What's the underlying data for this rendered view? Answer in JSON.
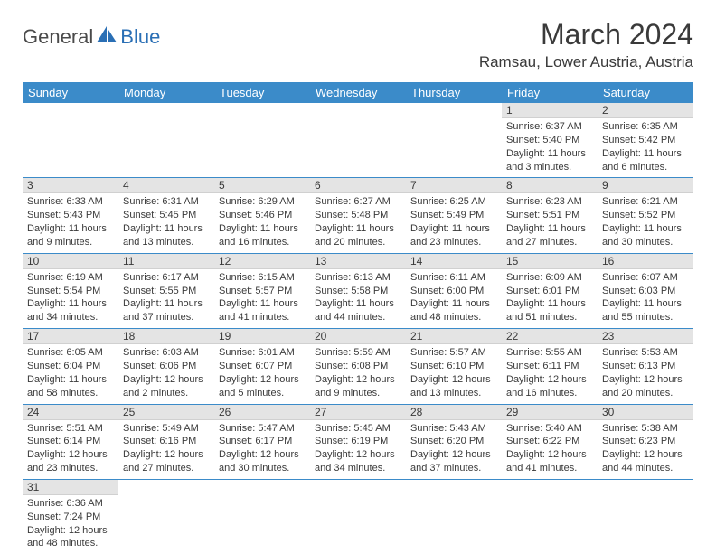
{
  "brand": {
    "part1": "General",
    "part2": "Blue"
  },
  "title": "March 2024",
  "location": "Ramsau, Lower Austria, Austria",
  "colors": {
    "header_bg": "#3b8bc9",
    "header_text": "#ffffff",
    "daynum_bg": "#e4e4e4",
    "text": "#3a3a3a",
    "row_border": "#3b8bc9",
    "logo_gray": "#4a4a4a",
    "logo_blue": "#2a6fb5"
  },
  "weekdays": [
    "Sunday",
    "Monday",
    "Tuesday",
    "Wednesday",
    "Thursday",
    "Friday",
    "Saturday"
  ],
  "weeks": [
    [
      null,
      null,
      null,
      null,
      null,
      {
        "num": "1",
        "sunrise": "Sunrise: 6:37 AM",
        "sunset": "Sunset: 5:40 PM",
        "daylight": "Daylight: 11 hours and 3 minutes."
      },
      {
        "num": "2",
        "sunrise": "Sunrise: 6:35 AM",
        "sunset": "Sunset: 5:42 PM",
        "daylight": "Daylight: 11 hours and 6 minutes."
      }
    ],
    [
      {
        "num": "3",
        "sunrise": "Sunrise: 6:33 AM",
        "sunset": "Sunset: 5:43 PM",
        "daylight": "Daylight: 11 hours and 9 minutes."
      },
      {
        "num": "4",
        "sunrise": "Sunrise: 6:31 AM",
        "sunset": "Sunset: 5:45 PM",
        "daylight": "Daylight: 11 hours and 13 minutes."
      },
      {
        "num": "5",
        "sunrise": "Sunrise: 6:29 AM",
        "sunset": "Sunset: 5:46 PM",
        "daylight": "Daylight: 11 hours and 16 minutes."
      },
      {
        "num": "6",
        "sunrise": "Sunrise: 6:27 AM",
        "sunset": "Sunset: 5:48 PM",
        "daylight": "Daylight: 11 hours and 20 minutes."
      },
      {
        "num": "7",
        "sunrise": "Sunrise: 6:25 AM",
        "sunset": "Sunset: 5:49 PM",
        "daylight": "Daylight: 11 hours and 23 minutes."
      },
      {
        "num": "8",
        "sunrise": "Sunrise: 6:23 AM",
        "sunset": "Sunset: 5:51 PM",
        "daylight": "Daylight: 11 hours and 27 minutes."
      },
      {
        "num": "9",
        "sunrise": "Sunrise: 6:21 AM",
        "sunset": "Sunset: 5:52 PM",
        "daylight": "Daylight: 11 hours and 30 minutes."
      }
    ],
    [
      {
        "num": "10",
        "sunrise": "Sunrise: 6:19 AM",
        "sunset": "Sunset: 5:54 PM",
        "daylight": "Daylight: 11 hours and 34 minutes."
      },
      {
        "num": "11",
        "sunrise": "Sunrise: 6:17 AM",
        "sunset": "Sunset: 5:55 PM",
        "daylight": "Daylight: 11 hours and 37 minutes."
      },
      {
        "num": "12",
        "sunrise": "Sunrise: 6:15 AM",
        "sunset": "Sunset: 5:57 PM",
        "daylight": "Daylight: 11 hours and 41 minutes."
      },
      {
        "num": "13",
        "sunrise": "Sunrise: 6:13 AM",
        "sunset": "Sunset: 5:58 PM",
        "daylight": "Daylight: 11 hours and 44 minutes."
      },
      {
        "num": "14",
        "sunrise": "Sunrise: 6:11 AM",
        "sunset": "Sunset: 6:00 PM",
        "daylight": "Daylight: 11 hours and 48 minutes."
      },
      {
        "num": "15",
        "sunrise": "Sunrise: 6:09 AM",
        "sunset": "Sunset: 6:01 PM",
        "daylight": "Daylight: 11 hours and 51 minutes."
      },
      {
        "num": "16",
        "sunrise": "Sunrise: 6:07 AM",
        "sunset": "Sunset: 6:03 PM",
        "daylight": "Daylight: 11 hours and 55 minutes."
      }
    ],
    [
      {
        "num": "17",
        "sunrise": "Sunrise: 6:05 AM",
        "sunset": "Sunset: 6:04 PM",
        "daylight": "Daylight: 11 hours and 58 minutes."
      },
      {
        "num": "18",
        "sunrise": "Sunrise: 6:03 AM",
        "sunset": "Sunset: 6:06 PM",
        "daylight": "Daylight: 12 hours and 2 minutes."
      },
      {
        "num": "19",
        "sunrise": "Sunrise: 6:01 AM",
        "sunset": "Sunset: 6:07 PM",
        "daylight": "Daylight: 12 hours and 5 minutes."
      },
      {
        "num": "20",
        "sunrise": "Sunrise: 5:59 AM",
        "sunset": "Sunset: 6:08 PM",
        "daylight": "Daylight: 12 hours and 9 minutes."
      },
      {
        "num": "21",
        "sunrise": "Sunrise: 5:57 AM",
        "sunset": "Sunset: 6:10 PM",
        "daylight": "Daylight: 12 hours and 13 minutes."
      },
      {
        "num": "22",
        "sunrise": "Sunrise: 5:55 AM",
        "sunset": "Sunset: 6:11 PM",
        "daylight": "Daylight: 12 hours and 16 minutes."
      },
      {
        "num": "23",
        "sunrise": "Sunrise: 5:53 AM",
        "sunset": "Sunset: 6:13 PM",
        "daylight": "Daylight: 12 hours and 20 minutes."
      }
    ],
    [
      {
        "num": "24",
        "sunrise": "Sunrise: 5:51 AM",
        "sunset": "Sunset: 6:14 PM",
        "daylight": "Daylight: 12 hours and 23 minutes."
      },
      {
        "num": "25",
        "sunrise": "Sunrise: 5:49 AM",
        "sunset": "Sunset: 6:16 PM",
        "daylight": "Daylight: 12 hours and 27 minutes."
      },
      {
        "num": "26",
        "sunrise": "Sunrise: 5:47 AM",
        "sunset": "Sunset: 6:17 PM",
        "daylight": "Daylight: 12 hours and 30 minutes."
      },
      {
        "num": "27",
        "sunrise": "Sunrise: 5:45 AM",
        "sunset": "Sunset: 6:19 PM",
        "daylight": "Daylight: 12 hours and 34 minutes."
      },
      {
        "num": "28",
        "sunrise": "Sunrise: 5:43 AM",
        "sunset": "Sunset: 6:20 PM",
        "daylight": "Daylight: 12 hours and 37 minutes."
      },
      {
        "num": "29",
        "sunrise": "Sunrise: 5:40 AM",
        "sunset": "Sunset: 6:22 PM",
        "daylight": "Daylight: 12 hours and 41 minutes."
      },
      {
        "num": "30",
        "sunrise": "Sunrise: 5:38 AM",
        "sunset": "Sunset: 6:23 PM",
        "daylight": "Daylight: 12 hours and 44 minutes."
      }
    ],
    [
      {
        "num": "31",
        "sunrise": "Sunrise: 6:36 AM",
        "sunset": "Sunset: 7:24 PM",
        "daylight": "Daylight: 12 hours and 48 minutes."
      },
      null,
      null,
      null,
      null,
      null,
      null
    ]
  ]
}
